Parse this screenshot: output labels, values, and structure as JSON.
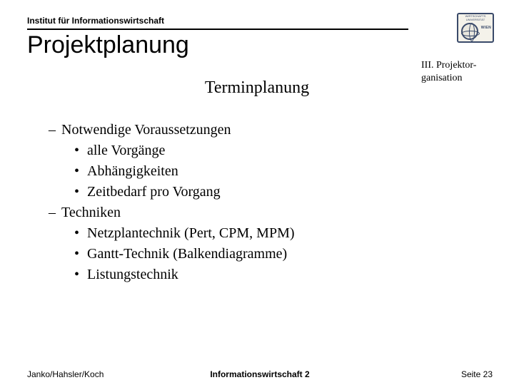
{
  "institute": "Institut für Informationswirtschaft",
  "title": "Projektplanung",
  "section_label_line1": "III. Projektor-",
  "section_label_line2": "ganisation",
  "subtitle": "Terminplanung",
  "items": {
    "g0": {
      "label": "Notwendige Voraussetzungen"
    },
    "g0_s0": "alle Vorgänge",
    "g0_s1": "Abhängigkeiten",
    "g0_s2": "Zeitbedarf pro Vorgang",
    "g1": {
      "label": "Techniken"
    },
    "g1_s0": "Netzplantechnik (Pert, CPM, MPM)",
    "g1_s1": "Gantt-Technik (Balkendiagramme)",
    "g1_s2": "Listungstechnik"
  },
  "footer": {
    "left": "Janko/Hahsler/Koch",
    "center": "Informationswirtschaft 2",
    "right": "Seite 23"
  },
  "logo": {
    "top": "WIRTSCHAFTS UNIVERSITÄT",
    "side": "WIEN"
  },
  "colors": {
    "text": "#000000",
    "background": "#ffffff",
    "logo_border": "#3a4a6a",
    "logo_fill": "#f4f2ea"
  }
}
